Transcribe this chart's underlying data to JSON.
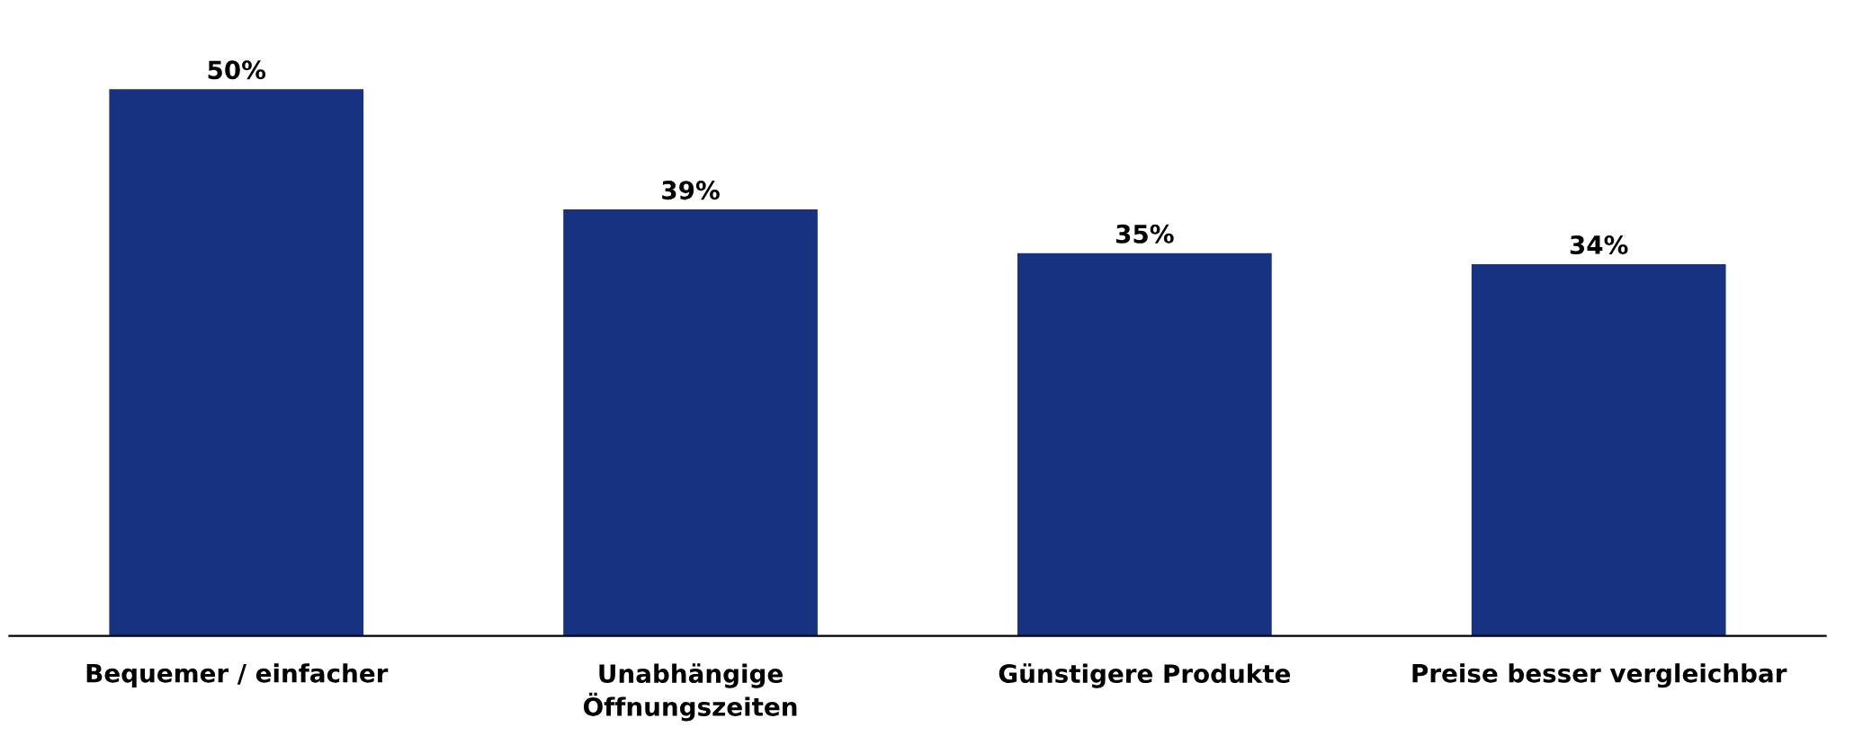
{
  "chart_data": {
    "type": "bar",
    "categories": [
      "Bequemer / einfacher",
      "Unabhängige\nÖffnungszeiten",
      "Günstigere Produkte",
      "Preise besser vergleichbar"
    ],
    "values": [
      50,
      39,
      35,
      34
    ],
    "value_labels": [
      "50%",
      "39%",
      "35%",
      "34%"
    ],
    "color": "#183282",
    "grid": false,
    "legend": false
  }
}
